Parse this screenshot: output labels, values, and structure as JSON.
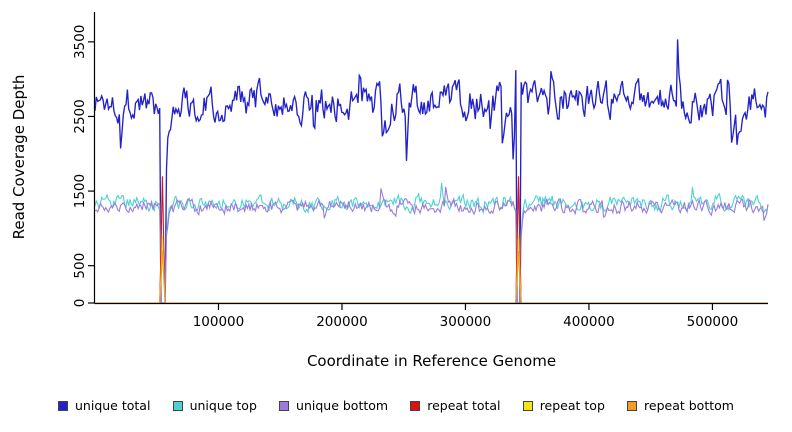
{
  "chart_data": {
    "type": "line",
    "title": "",
    "xlabel": "Coordinate in Reference Genome",
    "ylabel": "Read Coverage Depth",
    "xlim": [
      0,
      545000
    ],
    "ylim": [
      0,
      3900
    ],
    "xticks": [
      100000,
      200000,
      300000,
      400000,
      500000
    ],
    "xtick_labels": [
      "100000",
      "200000",
      "300000",
      "400000",
      "500000"
    ],
    "yticks": [
      0,
      500,
      1500,
      2500,
      3500
    ],
    "ytick_labels": [
      "0",
      "500",
      "1500",
      "2500",
      "3500"
    ],
    "grid": false,
    "legend_position": "bottom",
    "n_points": 500,
    "seed": 1337,
    "events": [
      {
        "x": 55000,
        "zero_halfwidth": 1800,
        "spike_halfwidth": 1500
      },
      {
        "x": 343000,
        "zero_halfwidth": 1800,
        "spike_halfwidth": 1500
      }
    ],
    "series": [
      {
        "name": "unique total",
        "color": "#2222c8",
        "baseline": 2700,
        "noise": 400,
        "min": 1800,
        "max": 3880,
        "jump_prob": 0.05,
        "jump_scale": 2.2,
        "zero_at_events": true,
        "spike_peak": 0
      },
      {
        "name": "unique top",
        "color": "#4fd1d1",
        "baseline": 1340,
        "noise": 170,
        "min": 950,
        "max": 1780,
        "jump_prob": 0.02,
        "jump_scale": 1.8,
        "zero_at_events": true,
        "spike_peak": 0
      },
      {
        "name": "unique bottom",
        "color": "#9b7bdb",
        "baseline": 1290,
        "noise": 160,
        "min": 900,
        "max": 1700,
        "jump_prob": 0.02,
        "jump_scale": 1.8,
        "zero_at_events": true,
        "spike_peak": 0
      },
      {
        "name": "repeat total",
        "color": "#dd1111",
        "baseline": 0,
        "noise": 0,
        "min": 0,
        "max": 1750,
        "jump_prob": 0,
        "jump_scale": 0,
        "zero_at_events": false,
        "spike_peak": 1700
      },
      {
        "name": "repeat top",
        "color": "#f3e51c",
        "baseline": 0,
        "noise": 0,
        "min": 0,
        "max": 950,
        "jump_prob": 0,
        "jump_scale": 0,
        "zero_at_events": false,
        "spike_peak": 900
      },
      {
        "name": "repeat bottom",
        "color": "#f59d1e",
        "baseline": 0,
        "noise": 0,
        "min": 0,
        "max": 800,
        "jump_prob": 0,
        "jump_scale": 0,
        "zero_at_events": false,
        "spike_peak": 700
      }
    ]
  }
}
